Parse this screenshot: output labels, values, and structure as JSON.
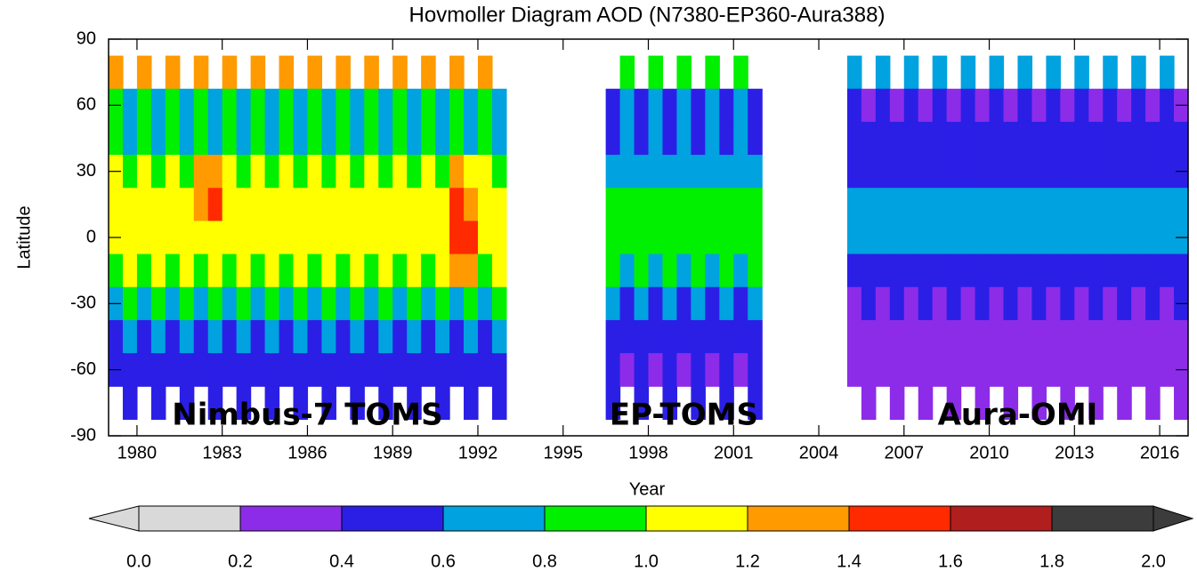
{
  "chart_data": {
    "type": "hovmoller",
    "title": "Hovmoller Diagram AOD (N7380-EP360-Aura388)",
    "x_label": "Year",
    "y_label": "Latitude",
    "xlim": [
      1979,
      2017
    ],
    "xticks": [
      1980,
      1983,
      1986,
      1989,
      1992,
      1995,
      1998,
      2001,
      2004,
      2007,
      2010,
      2013,
      2016
    ],
    "ylim": [
      -90,
      90
    ],
    "yticks": [
      -90,
      -60,
      -30,
      0,
      30,
      60,
      90
    ],
    "y": [
      75,
      60,
      45,
      30,
      15,
      0,
      -15,
      -30,
      -45,
      -60,
      -75
    ],
    "levels": [
      {
        "value": 0,
        "label": "0.0"
      },
      0.2,
      0.4,
      0.6,
      0.8,
      {
        "value": 1,
        "label": "1.0"
      },
      1.2,
      1.4,
      1.6,
      1.8,
      {
        "value": 2,
        "label": "2.0"
      }
    ],
    "colors": [
      "#d9d9d9",
      "#8c2ce8",
      "#2b1fe6",
      "#00a2e0",
      "#00f000",
      "#ffff00",
      "#ff9a00",
      "#ff2a00",
      "#b01e1e",
      "#3c3c3c"
    ],
    "datasets": [
      {
        "name": "Nimbus-7 TOMS",
        "x": [
          1979.25,
          1979.75,
          1980.25,
          1980.75,
          1981.25,
          1981.75,
          1982.25,
          1982.75,
          1983.25,
          1983.75,
          1984.25,
          1984.75,
          1985.25,
          1985.75,
          1986.25,
          1986.75,
          1987.25,
          1987.75,
          1988.25,
          1988.75,
          1989.25,
          1989.75,
          1990.25,
          1990.75,
          1991.25,
          1991.75,
          1992.25,
          1992.75
        ],
        "z": [
          [
            1.3,
            null,
            1.3,
            null,
            1.3,
            null,
            1.3,
            null,
            1.3,
            null,
            1.3,
            null,
            1.3,
            null,
            1.3,
            null,
            1.3,
            null,
            1.3,
            null,
            1.3,
            null,
            1.3,
            null,
            1.3,
            null,
            1.3,
            null
          ],
          [
            0.9,
            0.6,
            0.9,
            0.6,
            0.9,
            0.6,
            0.9,
            0.6,
            0.9,
            0.6,
            0.9,
            0.6,
            0.9,
            0.6,
            0.9,
            0.6,
            0.9,
            0.6,
            0.9,
            0.6,
            0.9,
            0.6,
            0.9,
            0.6,
            0.9,
            0.6,
            0.9,
            0.6
          ],
          [
            0.9,
            0.7,
            0.9,
            0.7,
            0.9,
            0.7,
            0.9,
            0.7,
            0.9,
            0.7,
            0.9,
            0.7,
            0.9,
            0.7,
            0.9,
            0.7,
            0.9,
            0.7,
            0.9,
            0.7,
            0.9,
            0.7,
            0.9,
            0.7,
            0.9,
            0.7,
            0.9,
            0.7
          ],
          [
            1.0,
            0.9,
            1.0,
            0.9,
            1.0,
            0.9,
            1.2,
            1.3,
            1.0,
            0.9,
            1.0,
            0.9,
            1.0,
            0.9,
            1.0,
            0.9,
            1.0,
            0.9,
            1.0,
            0.9,
            1.0,
            0.9,
            1.0,
            0.9,
            1.2,
            1.1,
            1.0,
            0.9
          ],
          [
            1.1,
            1.0,
            1.1,
            1.0,
            1.1,
            1.0,
            1.3,
            1.4,
            1.1,
            1.0,
            1.1,
            1.0,
            1.1,
            1.0,
            1.1,
            1.0,
            1.1,
            1.0,
            1.1,
            1.0,
            1.1,
            1.0,
            1.1,
            1.0,
            1.4,
            1.3,
            1.1,
            1.0
          ],
          [
            1.1,
            1.0,
            1.1,
            1.0,
            1.1,
            1.0,
            1.1,
            1.0,
            1.1,
            1.0,
            1.1,
            1.0,
            1.1,
            1.0,
            1.1,
            1.0,
            1.1,
            1.0,
            1.1,
            1.0,
            1.1,
            1.0,
            1.1,
            1.0,
            1.5,
            1.4,
            1.1,
            1.0
          ],
          [
            0.9,
            1.0,
            0.9,
            1.0,
            0.9,
            1.0,
            0.9,
            1.0,
            0.9,
            1.0,
            0.9,
            1.0,
            0.9,
            1.0,
            0.9,
            1.0,
            0.9,
            1.0,
            0.9,
            1.0,
            0.9,
            1.0,
            0.9,
            1.0,
            1.2,
            1.3,
            0.9,
            1.0
          ],
          [
            0.6,
            0.8,
            0.6,
            0.8,
            0.6,
            0.8,
            0.6,
            0.8,
            0.6,
            0.8,
            0.6,
            0.8,
            0.6,
            0.8,
            0.6,
            0.8,
            0.6,
            0.8,
            0.6,
            0.8,
            0.6,
            0.8,
            0.6,
            0.8,
            0.6,
            0.8,
            0.6,
            0.8
          ],
          [
            0.5,
            0.6,
            0.5,
            0.6,
            0.5,
            0.6,
            0.5,
            0.6,
            0.5,
            0.6,
            0.5,
            0.6,
            0.5,
            0.6,
            0.5,
            0.6,
            0.5,
            0.6,
            0.5,
            0.6,
            0.5,
            0.6,
            0.5,
            0.6,
            0.5,
            0.6,
            0.5,
            0.6
          ],
          [
            0.4,
            0.5,
            0.4,
            0.5,
            0.4,
            0.5,
            0.4,
            0.5,
            0.4,
            0.5,
            0.4,
            0.5,
            0.4,
            0.5,
            0.4,
            0.5,
            0.4,
            0.5,
            0.4,
            0.5,
            0.4,
            0.5,
            0.4,
            0.5,
            0.4,
            0.5,
            0.4,
            0.5
          ],
          [
            null,
            0.5,
            null,
            0.5,
            null,
            0.5,
            null,
            0.5,
            null,
            0.5,
            null,
            0.5,
            null,
            0.5,
            null,
            0.5,
            null,
            0.5,
            null,
            0.5,
            null,
            0.5,
            null,
            0.5,
            null,
            0.5,
            null,
            0.5
          ]
        ]
      },
      {
        "name": "EP-TOMS",
        "x": [
          1996.75,
          1997.25,
          1997.75,
          1998.25,
          1998.75,
          1999.25,
          1999.75,
          2000.25,
          2000.75,
          2001.25,
          2001.75
        ],
        "z": [
          [
            null,
            0.8,
            null,
            0.8,
            null,
            0.8,
            null,
            0.8,
            null,
            0.8,
            null
          ],
          [
            0.5,
            0.6,
            0.5,
            0.6,
            0.5,
            0.6,
            0.5,
            0.6,
            0.5,
            0.6,
            0.5
          ],
          [
            0.5,
            0.6,
            0.5,
            0.6,
            0.5,
            0.6,
            0.5,
            0.6,
            0.5,
            0.6,
            0.5
          ],
          [
            0.6,
            0.7,
            0.6,
            0.7,
            0.6,
            0.7,
            0.6,
            0.7,
            0.6,
            0.7,
            0.6
          ],
          [
            0.8,
            0.8,
            0.8,
            0.8,
            0.8,
            0.8,
            0.8,
            0.8,
            0.8,
            0.8,
            0.8
          ],
          [
            0.8,
            0.8,
            0.8,
            0.8,
            0.8,
            0.8,
            0.8,
            0.8,
            0.8,
            0.8,
            0.8
          ],
          [
            0.8,
            0.7,
            0.8,
            0.7,
            0.8,
            0.7,
            0.8,
            0.7,
            0.8,
            0.7,
            0.8
          ],
          [
            0.6,
            0.5,
            0.6,
            0.5,
            0.6,
            0.5,
            0.6,
            0.5,
            0.6,
            0.5,
            0.6
          ],
          [
            0.5,
            0.4,
            0.5,
            0.4,
            0.5,
            0.4,
            0.5,
            0.4,
            0.5,
            0.4,
            0.5
          ],
          [
            0.4,
            0.3,
            0.4,
            0.3,
            0.4,
            0.3,
            0.4,
            0.3,
            0.4,
            0.3,
            0.4
          ],
          [
            0.4,
            null,
            0.4,
            null,
            0.4,
            null,
            0.4,
            null,
            0.4,
            null,
            0.4
          ]
        ]
      },
      {
        "name": "Aura-OMI",
        "x": [
          2005.25,
          2005.75,
          2006.25,
          2006.75,
          2007.25,
          2007.75,
          2008.25,
          2008.75,
          2009.25,
          2009.75,
          2010.25,
          2010.75,
          2011.25,
          2011.75,
          2012.25,
          2012.75,
          2013.25,
          2013.75,
          2014.25,
          2014.75,
          2015.25,
          2015.75,
          2016.25,
          2016.75
        ],
        "z": [
          [
            0.6,
            null,
            0.6,
            null,
            0.6,
            null,
            0.6,
            null,
            0.6,
            null,
            0.6,
            null,
            0.6,
            null,
            0.6,
            null,
            0.6,
            null,
            0.6,
            null,
            0.6,
            null,
            0.6,
            null
          ],
          [
            0.4,
            0.3,
            0.4,
            0.3,
            0.4,
            0.3,
            0.4,
            0.3,
            0.4,
            0.3,
            0.4,
            0.3,
            0.4,
            0.3,
            0.4,
            0.3,
            0.4,
            0.3,
            0.4,
            0.3,
            0.4,
            0.3,
            0.4,
            0.3
          ],
          [
            0.5,
            0.4,
            0.5,
            0.4,
            0.5,
            0.4,
            0.5,
            0.4,
            0.5,
            0.4,
            0.5,
            0.4,
            0.5,
            0.4,
            0.5,
            0.4,
            0.5,
            0.4,
            0.5,
            0.4,
            0.5,
            0.4,
            0.5,
            0.4
          ],
          [
            0.5,
            0.4,
            0.5,
            0.4,
            0.5,
            0.4,
            0.5,
            0.4,
            0.5,
            0.4,
            0.5,
            0.4,
            0.5,
            0.4,
            0.5,
            0.4,
            0.5,
            0.4,
            0.5,
            0.4,
            0.5,
            0.4,
            0.5,
            0.4
          ],
          [
            0.6,
            0.6,
            0.6,
            0.6,
            0.6,
            0.6,
            0.6,
            0.6,
            0.6,
            0.6,
            0.6,
            0.6,
            0.6,
            0.6,
            0.6,
            0.6,
            0.6,
            0.6,
            0.6,
            0.6,
            0.6,
            0.6,
            0.6,
            0.6
          ],
          [
            0.6,
            0.6,
            0.6,
            0.6,
            0.7,
            0.6,
            0.6,
            0.6,
            0.6,
            0.6,
            0.6,
            0.6,
            0.6,
            0.6,
            0.6,
            0.6,
            0.6,
            0.6,
            0.6,
            0.6,
            0.7,
            0.6,
            0.6,
            0.6
          ],
          [
            0.5,
            0.5,
            0.5,
            0.5,
            0.5,
            0.5,
            0.5,
            0.5,
            0.5,
            0.5,
            0.5,
            0.5,
            0.5,
            0.5,
            0.5,
            0.5,
            0.5,
            0.5,
            0.5,
            0.5,
            0.5,
            0.5,
            0.5,
            0.5
          ],
          [
            0.3,
            0.4,
            0.3,
            0.4,
            0.3,
            0.4,
            0.3,
            0.4,
            0.3,
            0.4,
            0.3,
            0.4,
            0.3,
            0.4,
            0.3,
            0.4,
            0.3,
            0.4,
            0.3,
            0.4,
            0.3,
            0.4,
            0.3,
            0.4
          ],
          [
            0.3,
            0.3,
            0.3,
            0.3,
            0.3,
            0.3,
            0.3,
            0.3,
            0.3,
            0.3,
            0.3,
            0.3,
            0.3,
            0.3,
            0.3,
            0.3,
            0.3,
            0.3,
            0.3,
            0.3,
            0.3,
            0.3,
            0.3,
            0.3
          ],
          [
            0.2,
            0.3,
            0.2,
            0.3,
            0.2,
            0.3,
            0.2,
            0.3,
            0.2,
            0.3,
            0.2,
            0.3,
            0.2,
            0.3,
            0.2,
            0.3,
            0.2,
            0.3,
            0.2,
            0.3,
            0.2,
            0.3,
            0.2,
            0.3
          ],
          [
            null,
            0.3,
            null,
            0.3,
            null,
            0.3,
            null,
            0.3,
            null,
            0.3,
            null,
            0.3,
            null,
            0.3,
            null,
            0.3,
            null,
            0.3,
            null,
            0.3,
            null,
            0.3,
            null,
            0.3
          ]
        ]
      }
    ]
  }
}
